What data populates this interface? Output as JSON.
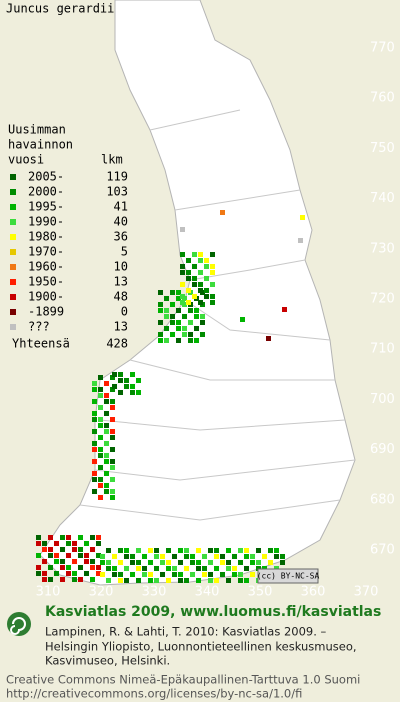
{
  "title": "Juncus gerardii",
  "legend": {
    "heading": [
      "Uusimman",
      "havainnon",
      "vuosi"
    ],
    "count_heading": "lkm",
    "rows": [
      {
        "label": "2005-",
        "count": 119,
        "color": "#006400"
      },
      {
        "label": "2000-",
        "count": 103,
        "color": "#008c00"
      },
      {
        "label": "1995-",
        "count": 41,
        "color": "#00b400"
      },
      {
        "label": "1990-",
        "count": 40,
        "color": "#3cdc3c"
      },
      {
        "label": "1980-",
        "count": 36,
        "color": "#ffff00"
      },
      {
        "label": "1970-",
        "count": 5,
        "color": "#e6c800"
      },
      {
        "label": "1960-",
        "count": 10,
        "color": "#f07814"
      },
      {
        "label": "1950-",
        "count": 13,
        "color": "#ff1e00"
      },
      {
        "label": "1900-",
        "count": 48,
        "color": "#c80000"
      },
      {
        "label": "-1899",
        "count": 0,
        "color": "#780000"
      },
      {
        "label": "???",
        "count": 13,
        "color": "#c0c0c0"
      }
    ],
    "total_label": "Yhteensä",
    "total": 428
  },
  "axes": {
    "north": [
      770,
      760,
      750,
      740,
      730,
      720,
      710,
      700,
      690,
      680,
      670
    ],
    "east": [
      310,
      320,
      330,
      340,
      350,
      360,
      370
    ]
  },
  "license_badge": "(cc) BY-NC-SA",
  "footer": {
    "heading": "Kasviatlas 2009, www.luomus.fi/kasviatlas",
    "citation": [
      "Lampinen, R. & Lahti, T. 2010: Kasviatlas 2009. –",
      "Helsingin Yliopisto, Luonnontieteellinen keskusmuseo,",
      "Kasvimuseo, Helsinki."
    ],
    "license": [
      "Creative Commons Nimeä-Epäkaupallinen-Tarttuva 1.0 Suomi",
      "http://creativecommons.org/licenses/by-nc-sa/1.0/fi"
    ]
  }
}
